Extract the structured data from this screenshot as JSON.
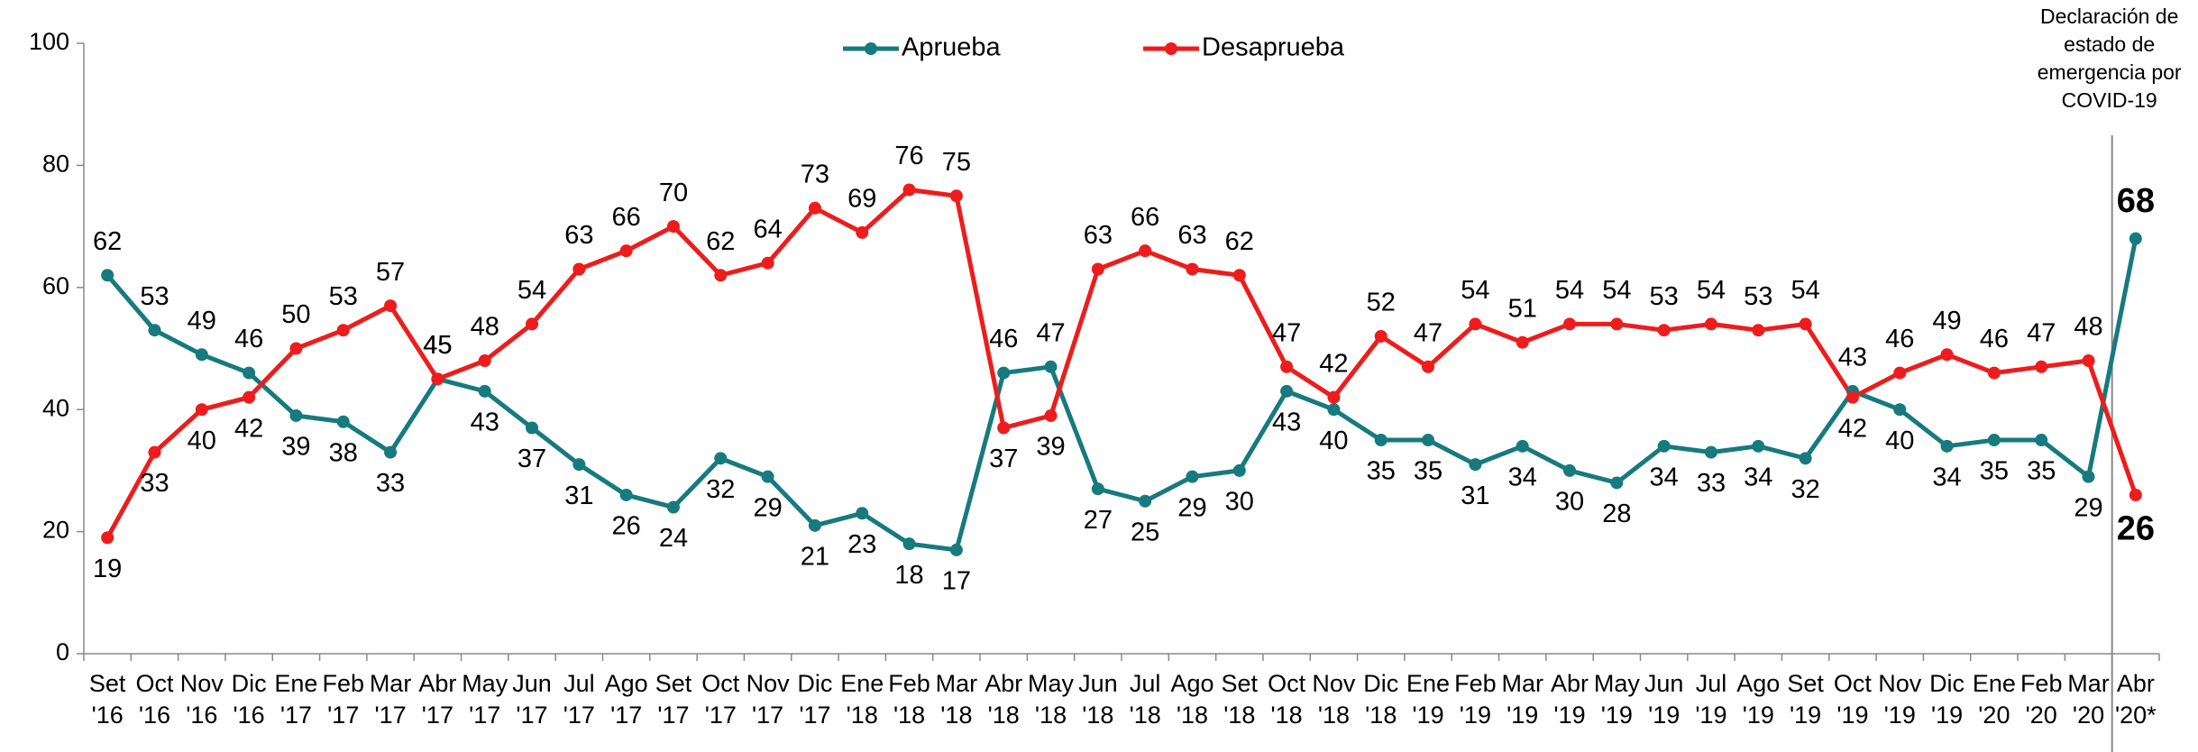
{
  "chart_data": {
    "type": "line",
    "categories": [
      [
        "Set",
        "'16"
      ],
      [
        "Oct",
        "'16"
      ],
      [
        "Nov",
        "'16"
      ],
      [
        "Dic",
        "'16"
      ],
      [
        "Ene",
        "'17"
      ],
      [
        "Feb",
        "'17"
      ],
      [
        "Mar",
        "'17"
      ],
      [
        "Abr",
        "'17"
      ],
      [
        "May",
        "'17"
      ],
      [
        "Jun",
        "'17"
      ],
      [
        "Jul",
        "'17"
      ],
      [
        "Ago",
        "'17"
      ],
      [
        "Set",
        "'17"
      ],
      [
        "Oct",
        "'17"
      ],
      [
        "Nov",
        "'17"
      ],
      [
        "Dic",
        "'17"
      ],
      [
        "Ene",
        "'18"
      ],
      [
        "Feb",
        "'18"
      ],
      [
        "Mar",
        "'18"
      ],
      [
        "Abr",
        "'18"
      ],
      [
        "May",
        "'18"
      ],
      [
        "Jun",
        "'18"
      ],
      [
        "Jul",
        "'18"
      ],
      [
        "Ago",
        "'18"
      ],
      [
        "Set",
        "'18"
      ],
      [
        "Oct",
        "'18"
      ],
      [
        "Nov",
        "'18"
      ],
      [
        "Dic",
        "'18"
      ],
      [
        "Ene",
        "'19"
      ],
      [
        "Feb",
        "'19"
      ],
      [
        "Mar",
        "'19"
      ],
      [
        "Abr",
        "'19"
      ],
      [
        "May",
        "'19"
      ],
      [
        "Jun",
        "'19"
      ],
      [
        "Jul",
        "'19"
      ],
      [
        "Ago",
        "'19"
      ],
      [
        "Set",
        "'19"
      ],
      [
        "Oct",
        "'19"
      ],
      [
        "Nov",
        "'19"
      ],
      [
        "Dic",
        "'19"
      ],
      [
        "Ene",
        "'20"
      ],
      [
        "Feb",
        "'20"
      ],
      [
        "Mar",
        "'20"
      ],
      [
        "Abr",
        "'20*"
      ]
    ],
    "series": [
      {
        "name": "Aprueba",
        "color": "#167a7e",
        "values": [
          62,
          53,
          49,
          46,
          39,
          38,
          33,
          45,
          43,
          37,
          31,
          26,
          24,
          32,
          29,
          21,
          23,
          18,
          17,
          46,
          47,
          27,
          25,
          29,
          30,
          43,
          40,
          35,
          35,
          31,
          34,
          30,
          28,
          34,
          33,
          34,
          32,
          43,
          40,
          34,
          35,
          35,
          29,
          68
        ]
      },
      {
        "name": "Desaprueba",
        "color": "#ee1c1c",
        "values": [
          19,
          33,
          40,
          42,
          50,
          53,
          57,
          45,
          48,
          54,
          63,
          66,
          70,
          62,
          64,
          73,
          69,
          76,
          75,
          37,
          39,
          63,
          66,
          63,
          62,
          47,
          42,
          52,
          47,
          54,
          51,
          54,
          54,
          53,
          54,
          53,
          54,
          42,
          46,
          49,
          46,
          47,
          48,
          26
        ]
      }
    ],
    "ylim": [
      0,
      100
    ],
    "yticks": [
      0,
      20,
      40,
      60,
      80,
      100
    ],
    "annotation": {
      "lines": [
        "Declaración de",
        "estado de",
        "emergencia por",
        "COVID-19"
      ]
    },
    "legend": "top"
  }
}
